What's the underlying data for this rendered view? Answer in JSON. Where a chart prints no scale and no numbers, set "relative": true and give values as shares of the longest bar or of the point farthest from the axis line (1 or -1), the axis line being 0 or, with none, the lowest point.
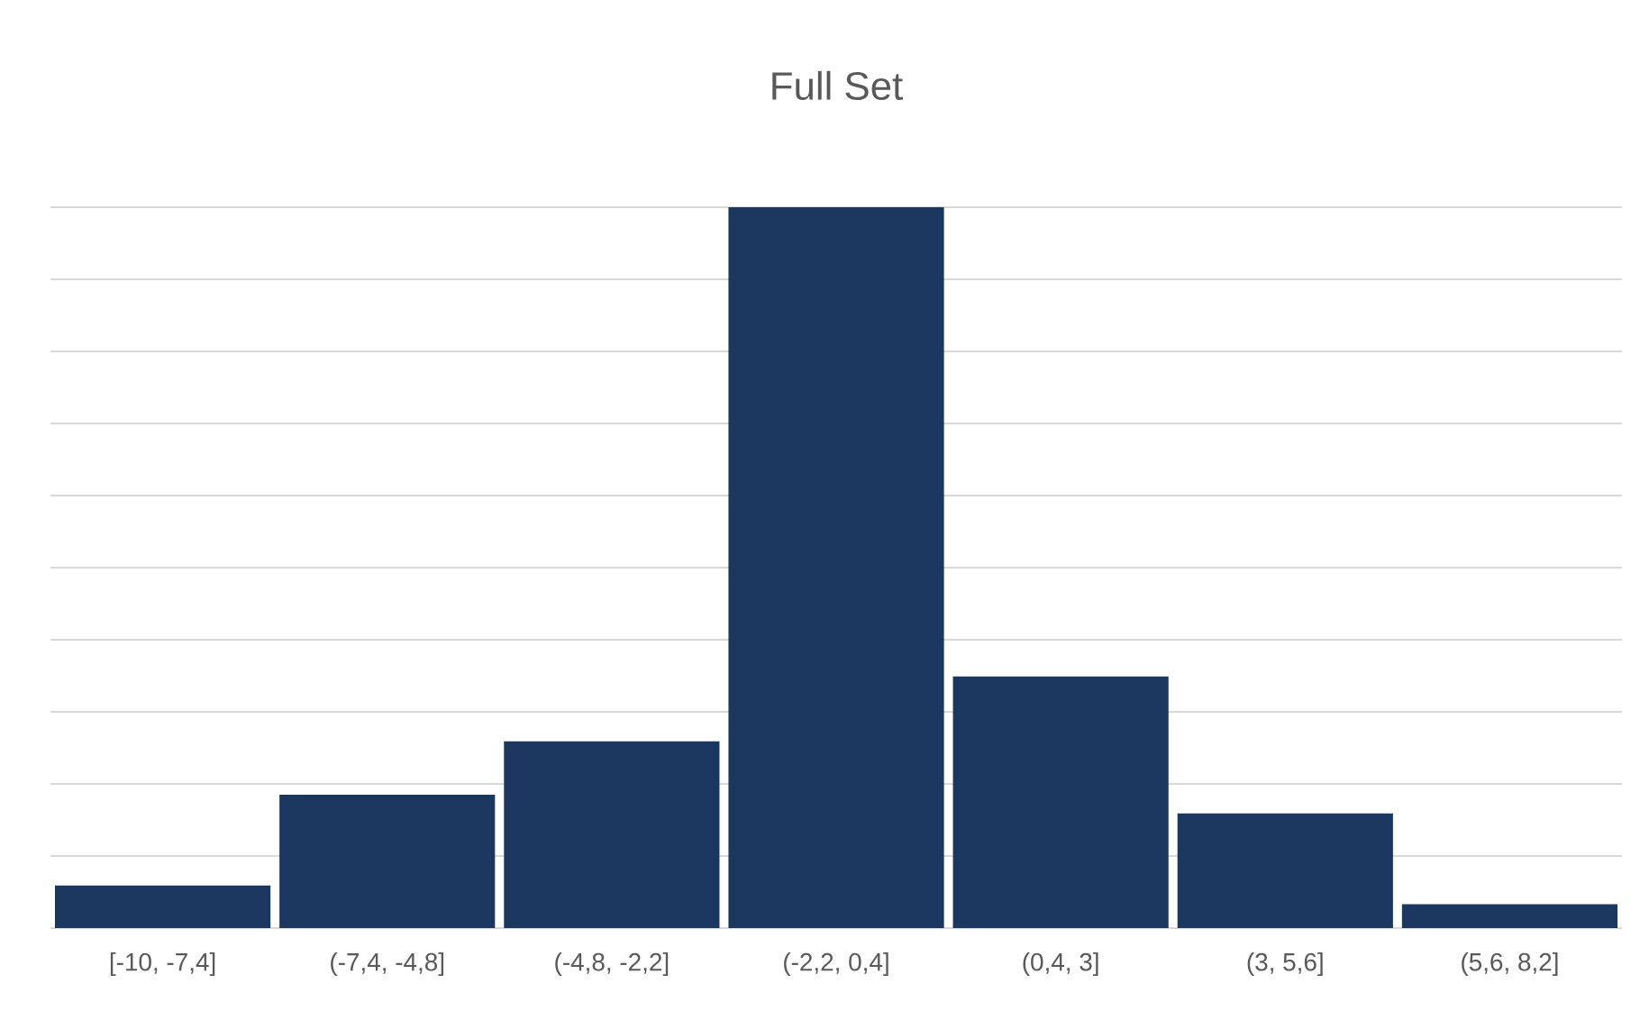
{
  "chart_data": {
    "type": "bar",
    "title": "Full Set",
    "categories": [
      "[-10, -7,4]",
      "(-7,4, -4,8]",
      "(-4,8, -2,2]",
      "(-2,2, 0,4]",
      "(0,4, 3]",
      "(3, 5,6]",
      "(5,6, 8,2]"
    ],
    "values": [
      0.059,
      0.185,
      0.259,
      1,
      0.349,
      0.159,
      0.033
    ],
    "color": "#1b365f",
    "relative": true,
    "grid": "y"
  }
}
